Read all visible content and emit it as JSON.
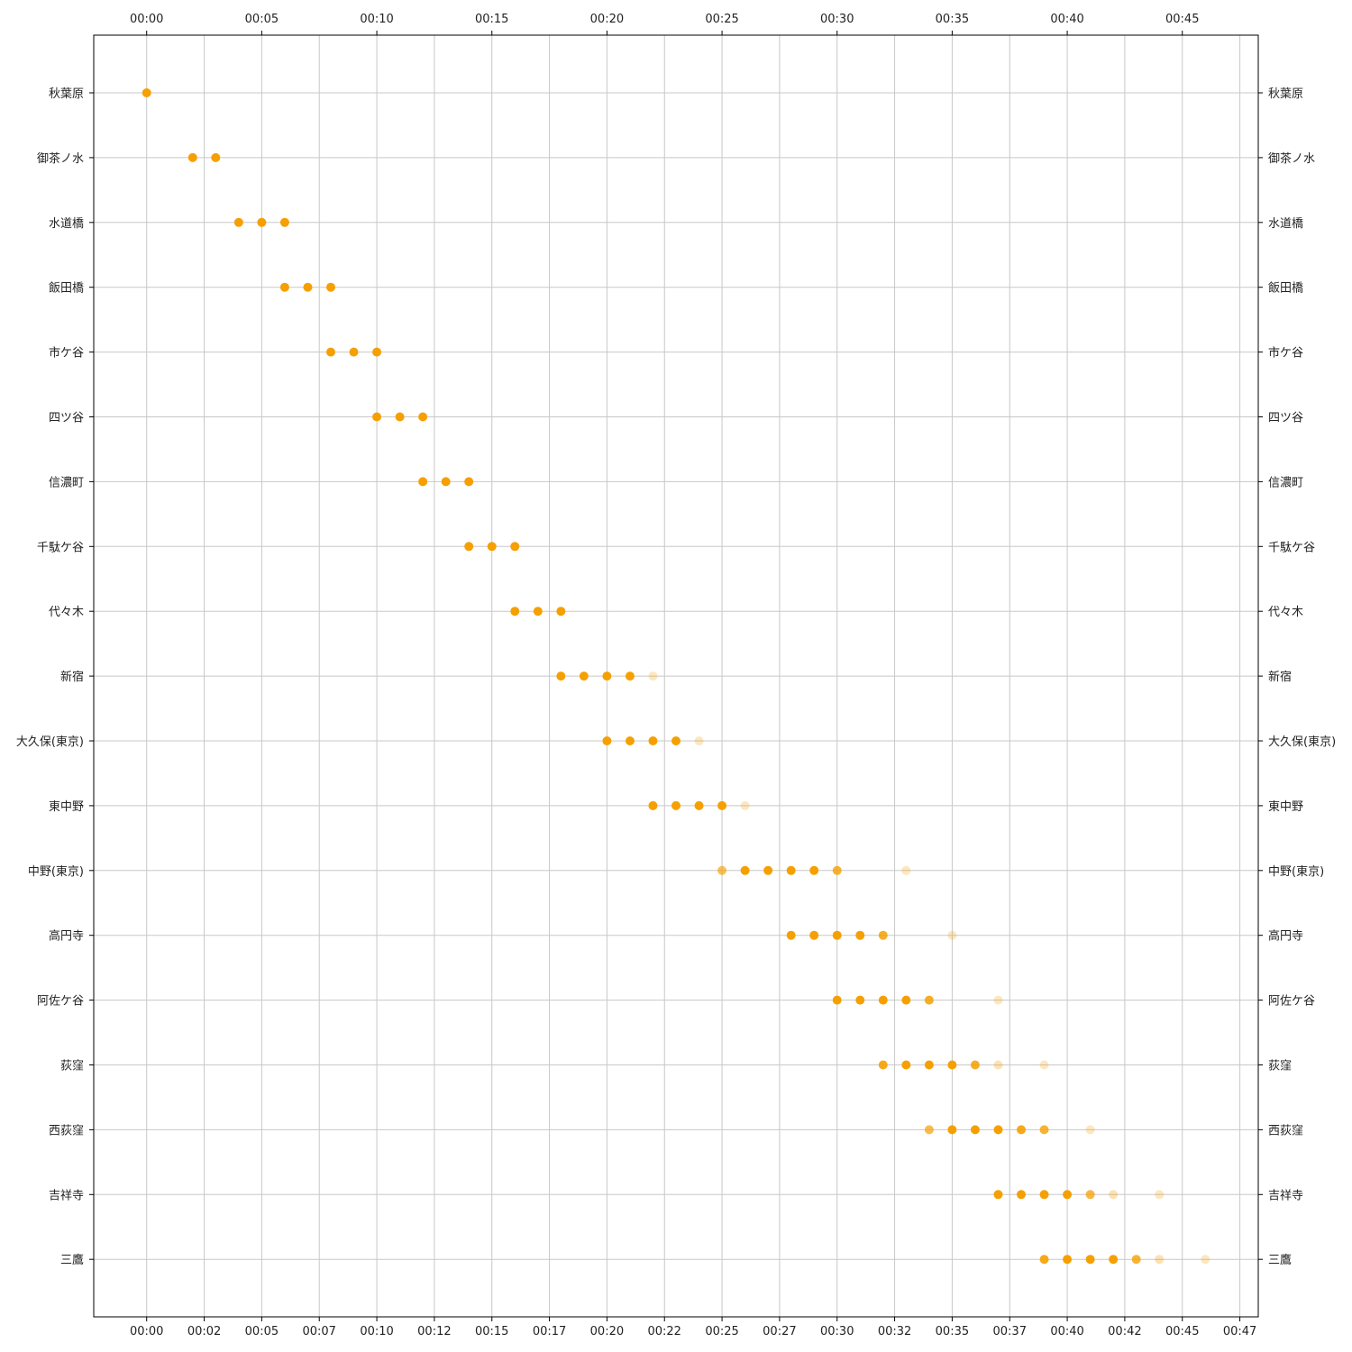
{
  "chart_data": {
    "type": "scatter",
    "title": "",
    "xlabel": "",
    "ylabel": "",
    "x_unit": "minutes",
    "xlim": [
      -2.3,
      48.3
    ],
    "top_ticks": [
      {
        "value": 0,
        "label": "00:00"
      },
      {
        "value": 5,
        "label": "00:05"
      },
      {
        "value": 10,
        "label": "00:10"
      },
      {
        "value": 15,
        "label": "00:15"
      },
      {
        "value": 20,
        "label": "00:20"
      },
      {
        "value": 25,
        "label": "00:25"
      },
      {
        "value": 30,
        "label": "00:30"
      },
      {
        "value": 35,
        "label": "00:35"
      },
      {
        "value": 40,
        "label": "00:40"
      },
      {
        "value": 45,
        "label": "00:45"
      }
    ],
    "bottom_ticks": [
      {
        "value": 0,
        "label": "00:00"
      },
      {
        "value": 2.5,
        "label": "00:02"
      },
      {
        "value": 5,
        "label": "00:05"
      },
      {
        "value": 7.5,
        "label": "00:07"
      },
      {
        "value": 10,
        "label": "00:10"
      },
      {
        "value": 12.5,
        "label": "00:12"
      },
      {
        "value": 15,
        "label": "00:15"
      },
      {
        "value": 17.5,
        "label": "00:17"
      },
      {
        "value": 20,
        "label": "00:20"
      },
      {
        "value": 22.5,
        "label": "00:22"
      },
      {
        "value": 25,
        "label": "00:25"
      },
      {
        "value": 27.5,
        "label": "00:27"
      },
      {
        "value": 30,
        "label": "00:30"
      },
      {
        "value": 32.5,
        "label": "00:32"
      },
      {
        "value": 35,
        "label": "00:35"
      },
      {
        "value": 37.5,
        "label": "00:37"
      },
      {
        "value": 40,
        "label": "00:40"
      },
      {
        "value": 42.5,
        "label": "00:42"
      },
      {
        "value": 45,
        "label": "00:45"
      },
      {
        "value": 47.5,
        "label": "00:47"
      }
    ],
    "grid": true,
    "marker_color": "#f5a000",
    "stations": [
      {
        "name": "秋葉原",
        "points": [
          [
            0,
            1.0
          ]
        ]
      },
      {
        "name": "御茶ノ水",
        "points": [
          [
            2,
            1.0
          ],
          [
            3,
            1.0
          ]
        ]
      },
      {
        "name": "水道橋",
        "points": [
          [
            4,
            1.0
          ],
          [
            5,
            1.0
          ],
          [
            6,
            1.0
          ]
        ]
      },
      {
        "name": "飯田橋",
        "points": [
          [
            6,
            1.0
          ],
          [
            7,
            1.0
          ],
          [
            8,
            1.0
          ]
        ]
      },
      {
        "name": "市ケ谷",
        "points": [
          [
            8,
            1.0
          ],
          [
            9,
            1.0
          ],
          [
            10,
            1.0
          ]
        ]
      },
      {
        "name": "四ツ谷",
        "points": [
          [
            10,
            1.0
          ],
          [
            11,
            1.0
          ],
          [
            12,
            1.0
          ]
        ]
      },
      {
        "name": "信濃町",
        "points": [
          [
            12,
            1.0
          ],
          [
            13,
            1.0
          ],
          [
            14,
            1.0
          ]
        ]
      },
      {
        "name": "千駄ケ谷",
        "points": [
          [
            14,
            1.0
          ],
          [
            15,
            1.0
          ],
          [
            16,
            1.0
          ]
        ]
      },
      {
        "name": "代々木",
        "points": [
          [
            16,
            1.0
          ],
          [
            17,
            1.0
          ],
          [
            18,
            1.0
          ]
        ]
      },
      {
        "name": "新宿",
        "points": [
          [
            18,
            1.0
          ],
          [
            19,
            1.0
          ],
          [
            20,
            1.0
          ],
          [
            21,
            1.0
          ],
          [
            22,
            0.25
          ]
        ]
      },
      {
        "name": "大久保(東京)",
        "points": [
          [
            20,
            1.0
          ],
          [
            21,
            1.0
          ],
          [
            22,
            1.0
          ],
          [
            23,
            1.0
          ],
          [
            24,
            0.25
          ]
        ]
      },
      {
        "name": "東中野",
        "points": [
          [
            22,
            1.0
          ],
          [
            23,
            1.0
          ],
          [
            24,
            1.0
          ],
          [
            25,
            1.0
          ],
          [
            26,
            0.25
          ]
        ]
      },
      {
        "name": "中野(東京)",
        "points": [
          [
            25,
            0.65
          ],
          [
            26,
            1.0
          ],
          [
            27,
            1.0
          ],
          [
            28,
            1.0
          ],
          [
            29,
            1.0
          ],
          [
            30,
            0.8
          ],
          [
            33,
            0.25
          ]
        ]
      },
      {
        "name": "高円寺",
        "points": [
          [
            28,
            1.0
          ],
          [
            29,
            1.0
          ],
          [
            30,
            1.0
          ],
          [
            31,
            1.0
          ],
          [
            32,
            0.85
          ],
          [
            35,
            0.25
          ]
        ]
      },
      {
        "name": "阿佐ケ谷",
        "points": [
          [
            30,
            1.0
          ],
          [
            31,
            1.0
          ],
          [
            32,
            1.0
          ],
          [
            33,
            1.0
          ],
          [
            34,
            0.85
          ],
          [
            37,
            0.25
          ]
        ]
      },
      {
        "name": "荻窪",
        "points": [
          [
            32,
            0.9
          ],
          [
            33,
            1.0
          ],
          [
            34,
            1.0
          ],
          [
            35,
            1.0
          ],
          [
            36,
            0.85
          ],
          [
            37,
            0.3
          ],
          [
            39,
            0.25
          ]
        ]
      },
      {
        "name": "西荻窪",
        "points": [
          [
            34,
            0.7
          ],
          [
            35,
            1.0
          ],
          [
            36,
            1.0
          ],
          [
            37,
            1.0
          ],
          [
            38,
            0.9
          ],
          [
            39,
            0.8
          ],
          [
            41,
            0.25
          ]
        ]
      },
      {
        "name": "吉祥寺",
        "points": [
          [
            37,
            1.0
          ],
          [
            38,
            1.0
          ],
          [
            39,
            1.0
          ],
          [
            40,
            1.0
          ],
          [
            41,
            0.75
          ],
          [
            42,
            0.3
          ],
          [
            44,
            0.25
          ]
        ]
      },
      {
        "name": "三鷹",
        "points": [
          [
            39,
            0.9
          ],
          [
            40,
            1.0
          ],
          [
            41,
            1.0
          ],
          [
            42,
            1.0
          ],
          [
            43,
            0.8
          ],
          [
            44,
            0.3
          ],
          [
            46,
            0.25
          ]
        ]
      }
    ]
  }
}
